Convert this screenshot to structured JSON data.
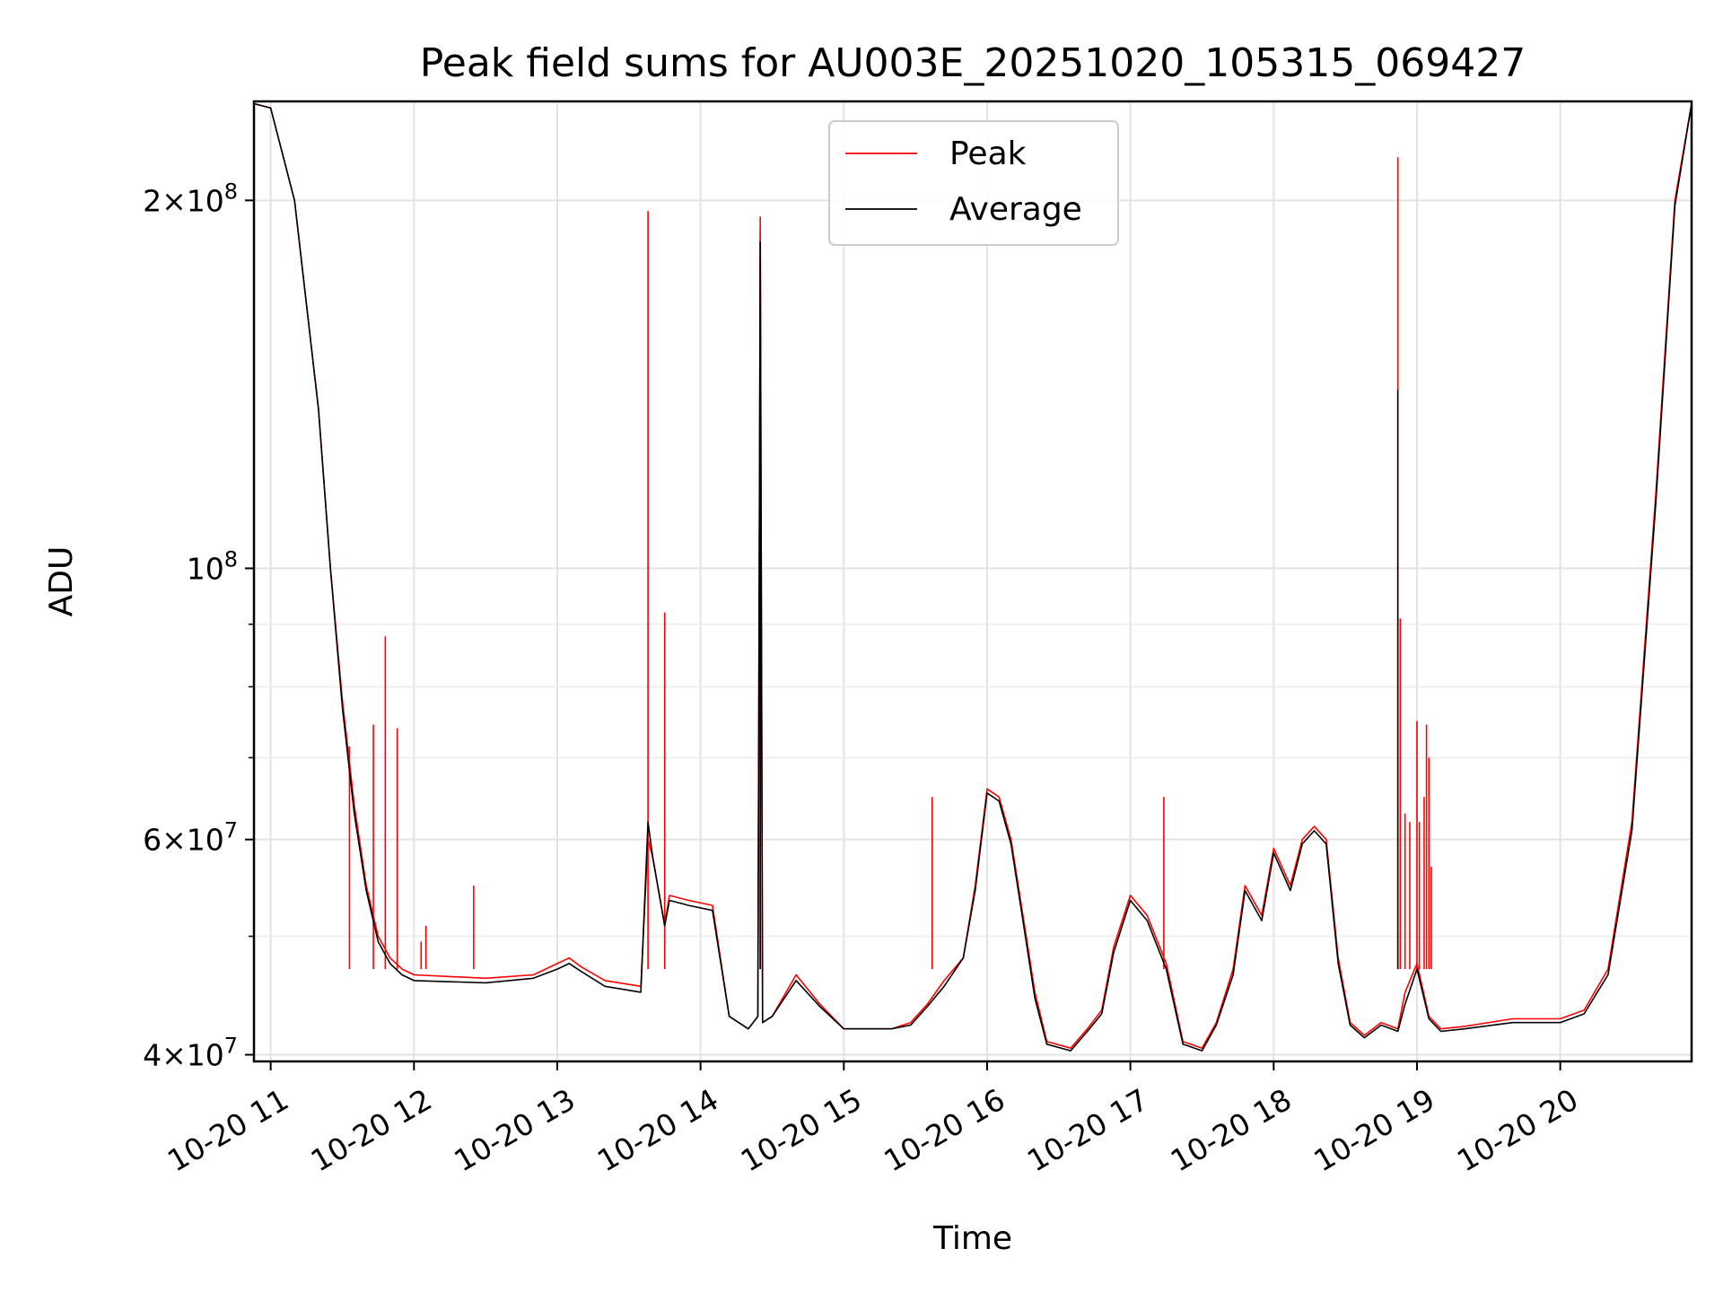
{
  "chart_data": {
    "type": "line",
    "title": "Peak field sums for AU003E_20251020_105315_069427",
    "xlabel": "Time",
    "ylabel": "ADU",
    "y_scale": "log",
    "xlim": [
      "2025-10-20 10:53",
      "2025-10-20 20:55"
    ],
    "ylim": [
      39500000,
      241000000
    ],
    "x_ticks": [
      {
        "value": "2025-10-20 11:00",
        "label": "10-20 11"
      },
      {
        "value": "2025-10-20 12:00",
        "label": "10-20 12"
      },
      {
        "value": "2025-10-20 13:00",
        "label": "10-20 13"
      },
      {
        "value": "2025-10-20 14:00",
        "label": "10-20 14"
      },
      {
        "value": "2025-10-20 15:00",
        "label": "10-20 15"
      },
      {
        "value": "2025-10-20 16:00",
        "label": "10-20 16"
      },
      {
        "value": "2025-10-20 17:00",
        "label": "10-20 17"
      },
      {
        "value": "2025-10-20 18:00",
        "label": "10-20 18"
      },
      {
        "value": "2025-10-20 19:00",
        "label": "10-20 19"
      },
      {
        "value": "2025-10-20 20:00",
        "label": "10-20 20"
      }
    ],
    "y_major_ticks": [
      {
        "value": 40000000,
        "base": "4",
        "exp": "7"
      },
      {
        "value": 60000000,
        "base": "6",
        "exp": "7"
      },
      {
        "value": 100000000,
        "base": "",
        "exp": "8"
      },
      {
        "value": 200000000,
        "base": "2",
        "exp": "8"
      }
    ],
    "y_minor_ticks": [
      50000000,
      70000000,
      80000000,
      90000000
    ],
    "grid": true,
    "legend_position": "top-center",
    "series": [
      {
        "name": "Peak",
        "color": "#ff0000",
        "x": [
          "2025-10-20 10:53",
          "2025-10-20 11:00",
          "2025-10-20 11:10",
          "2025-10-20 11:20",
          "2025-10-20 11:25",
          "2025-10-20 11:30",
          "2025-10-20 11:35",
          "2025-10-20 11:40",
          "2025-10-20 11:45",
          "2025-10-20 11:50",
          "2025-10-20 11:55",
          "2025-10-20 12:00",
          "2025-10-20 12:30",
          "2025-10-20 12:50",
          "2025-10-20 13:00",
          "2025-10-20 13:05",
          "2025-10-20 13:10",
          "2025-10-20 13:20",
          "2025-10-20 13:35",
          "2025-10-20 13:38",
          "2025-10-20 13:40",
          "2025-10-20 13:45",
          "2025-10-20 13:47",
          "2025-10-20 13:55",
          "2025-10-20 14:05",
          "2025-10-20 14:12",
          "2025-10-20 14:20",
          "2025-10-20 14:24",
          "2025-10-20 14:25",
          "2025-10-20 14:26",
          "2025-10-20 14:30",
          "2025-10-20 14:40",
          "2025-10-20 14:50",
          "2025-10-20 15:00",
          "2025-10-20 15:20",
          "2025-10-20 15:28",
          "2025-10-20 15:35",
          "2025-10-20 15:42",
          "2025-10-20 15:50",
          "2025-10-20 15:55",
          "2025-10-20 16:00",
          "2025-10-20 16:05",
          "2025-10-20 16:10",
          "2025-10-20 16:15",
          "2025-10-20 16:20",
          "2025-10-20 16:25",
          "2025-10-20 16:35",
          "2025-10-20 16:42",
          "2025-10-20 16:48",
          "2025-10-20 16:53",
          "2025-10-20 17:00",
          "2025-10-20 17:07",
          "2025-10-20 17:15",
          "2025-10-20 17:22",
          "2025-10-20 17:30",
          "2025-10-20 17:36",
          "2025-10-20 17:43",
          "2025-10-20 17:48",
          "2025-10-20 17:55",
          "2025-10-20 18:00",
          "2025-10-20 18:07",
          "2025-10-20 18:12",
          "2025-10-20 18:17",
          "2025-10-20 18:22",
          "2025-10-20 18:27",
          "2025-10-20 18:32",
          "2025-10-20 18:38",
          "2025-10-20 18:45",
          "2025-10-20 18:52",
          "2025-10-20 18:55",
          "2025-10-20 19:00",
          "2025-10-20 19:05",
          "2025-10-20 19:10",
          "2025-10-20 19:20",
          "2025-10-20 19:40",
          "2025-10-20 20:00",
          "2025-10-20 20:10",
          "2025-10-20 20:20",
          "2025-10-20 20:30",
          "2025-10-20 20:40",
          "2025-10-20 20:48",
          "2025-10-20 20:55"
        ],
        "y": [
          240000000,
          238000000,
          200000000,
          135000000,
          100000000,
          78000000,
          64000000,
          55000000,
          50000000,
          48000000,
          47000000,
          46500000,
          46200000,
          46500000,
          47500000,
          48000000,
          47200000,
          46000000,
          45500000,
          60000000,
          58000000,
          51000000,
          54000000,
          53500000,
          53000000,
          43000000,
          42000000,
          43000000,
          189000000,
          42500000,
          43000000,
          46500000,
          44000000,
          42000000,
          42000000,
          42500000,
          44000000,
          46000000,
          48000000,
          55000000,
          66000000,
          65000000,
          60000000,
          52000000,
          45000000,
          41000000,
          40500000,
          42000000,
          43500000,
          49000000,
          54000000,
          52000000,
          47500000,
          41000000,
          40500000,
          42500000,
          47000000,
          55000000,
          52000000,
          59000000,
          55000000,
          60000000,
          61500000,
          60000000,
          48000000,
          42500000,
          41500000,
          42500000,
          42000000,
          45000000,
          47500000,
          43000000,
          42000000,
          42200000,
          42800000,
          42800000,
          43500000,
          47000000,
          62000000,
          115000000,
          200000000,
          240000000
        ],
        "spikes": [
          {
            "x": "2025-10-20 11:33",
            "y": 71500000
          },
          {
            "x": "2025-10-20 11:43",
            "y": 74500000
          },
          {
            "x": "2025-10-20 11:48",
            "y": 88000000
          },
          {
            "x": "2025-10-20 11:53",
            "y": 74000000
          },
          {
            "x": "2025-10-20 12:03",
            "y": 49500000
          },
          {
            "x": "2025-10-20 12:05",
            "y": 51000000
          },
          {
            "x": "2025-10-20 12:25",
            "y": 55000000
          },
          {
            "x": "2025-10-20 13:38",
            "y": 196000000
          },
          {
            "x": "2025-10-20 13:45",
            "y": 92000000
          },
          {
            "x": "2025-10-20 14:25",
            "y": 194000000
          },
          {
            "x": "2025-10-20 15:37",
            "y": 65000000
          },
          {
            "x": "2025-10-20 17:14",
            "y": 65000000
          },
          {
            "x": "2025-10-20 18:52",
            "y": 217000000
          },
          {
            "x": "2025-10-20 18:53",
            "y": 91000000
          },
          {
            "x": "2025-10-20 18:55",
            "y": 63000000
          },
          {
            "x": "2025-10-20 18:57",
            "y": 62000000
          },
          {
            "x": "2025-10-20 19:00",
            "y": 75000000
          },
          {
            "x": "2025-10-20 19:01",
            "y": 62000000
          },
          {
            "x": "2025-10-20 19:03",
            "y": 65000000
          },
          {
            "x": "2025-10-20 19:04",
            "y": 74500000
          },
          {
            "x": "2025-10-20 19:05",
            "y": 70000000
          },
          {
            "x": "2025-10-20 19:06",
            "y": 57000000
          }
        ]
      },
      {
        "name": "Average",
        "color": "#000000",
        "x": [
          "2025-10-20 10:53",
          "2025-10-20 11:00",
          "2025-10-20 11:10",
          "2025-10-20 11:20",
          "2025-10-20 11:25",
          "2025-10-20 11:30",
          "2025-10-20 11:35",
          "2025-10-20 11:40",
          "2025-10-20 11:45",
          "2025-10-20 11:50",
          "2025-10-20 11:55",
          "2025-10-20 12:00",
          "2025-10-20 12:30",
          "2025-10-20 12:50",
          "2025-10-20 13:00",
          "2025-10-20 13:05",
          "2025-10-20 13:10",
          "2025-10-20 13:20",
          "2025-10-20 13:35",
          "2025-10-20 13:38",
          "2025-10-20 13:40",
          "2025-10-20 13:45",
          "2025-10-20 13:47",
          "2025-10-20 13:55",
          "2025-10-20 14:05",
          "2025-10-20 14:12",
          "2025-10-20 14:20",
          "2025-10-20 14:24",
          "2025-10-20 14:25",
          "2025-10-20 14:26",
          "2025-10-20 14:30",
          "2025-10-20 14:40",
          "2025-10-20 14:50",
          "2025-10-20 15:00",
          "2025-10-20 15:20",
          "2025-10-20 15:28",
          "2025-10-20 15:35",
          "2025-10-20 15:42",
          "2025-10-20 15:50",
          "2025-10-20 15:55",
          "2025-10-20 16:00",
          "2025-10-20 16:05",
          "2025-10-20 16:10",
          "2025-10-20 16:15",
          "2025-10-20 16:20",
          "2025-10-20 16:25",
          "2025-10-20 16:35",
          "2025-10-20 16:42",
          "2025-10-20 16:48",
          "2025-10-20 16:53",
          "2025-10-20 17:00",
          "2025-10-20 17:07",
          "2025-10-20 17:15",
          "2025-10-20 17:22",
          "2025-10-20 17:30",
          "2025-10-20 17:36",
          "2025-10-20 17:43",
          "2025-10-20 17:48",
          "2025-10-20 17:55",
          "2025-10-20 18:00",
          "2025-10-20 18:07",
          "2025-10-20 18:12",
          "2025-10-20 18:17",
          "2025-10-20 18:22",
          "2025-10-20 18:27",
          "2025-10-20 18:32",
          "2025-10-20 18:38",
          "2025-10-20 18:45",
          "2025-10-20 18:52",
          "2025-10-20 18:55",
          "2025-10-20 19:00",
          "2025-10-20 19:05",
          "2025-10-20 19:10",
          "2025-10-20 19:20",
          "2025-10-20 19:40",
          "2025-10-20 20:00",
          "2025-10-20 20:10",
          "2025-10-20 20:20",
          "2025-10-20 20:30",
          "2025-10-20 20:40",
          "2025-10-20 20:48",
          "2025-10-20 20:55"
        ],
        "y": [
          240000000,
          238000000,
          200000000,
          135000000,
          100000000,
          77000000,
          63000000,
          54500000,
          49500000,
          47500000,
          46500000,
          46000000,
          45800000,
          46200000,
          47000000,
          47500000,
          46800000,
          45500000,
          45000000,
          62000000,
          58000000,
          51000000,
          53500000,
          53000000,
          52500000,
          43000000,
          42000000,
          43000000,
          185000000,
          42500000,
          43000000,
          46000000,
          43800000,
          42000000,
          42000000,
          42300000,
          43800000,
          45500000,
          48000000,
          54500000,
          65500000,
          64500000,
          59500000,
          51500000,
          44500000,
          40800000,
          40300000,
          41800000,
          43200000,
          48500000,
          53500000,
          51500000,
          47000000,
          40800000,
          40300000,
          42300000,
          46500000,
          54500000,
          51500000,
          58500000,
          54500000,
          59500000,
          61000000,
          59500000,
          47500000,
          42300000,
          41300000,
          42300000,
          41800000,
          44000000,
          47000000,
          42800000,
          41800000,
          42000000,
          42500000,
          42500000,
          43200000,
          46500000,
          61000000,
          113000000,
          198000000,
          240000000
        ],
        "spikes": [
          {
            "x": "2025-10-20 14:25",
            "y": 185000000
          },
          {
            "x": "2025-10-20 18:52",
            "y": 140000000
          }
        ]
      }
    ]
  }
}
